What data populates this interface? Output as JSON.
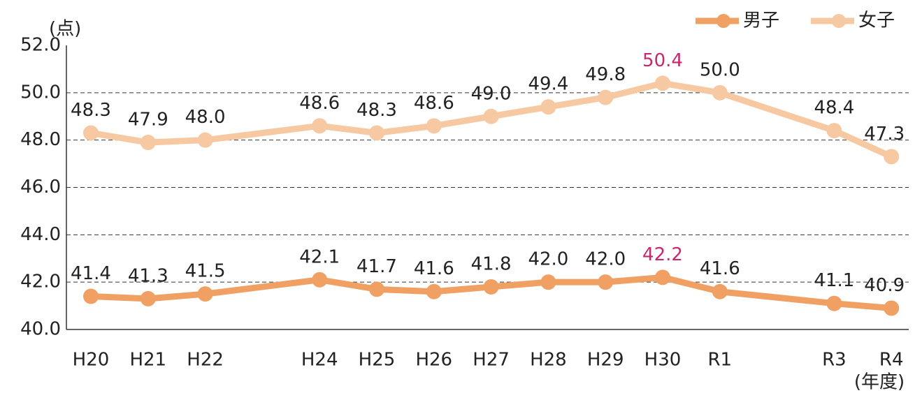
{
  "chart_data": {
    "type": "line",
    "y_label": "(点)",
    "x_label": "(年度)",
    "categories": [
      "H20",
      "H21",
      "H22",
      null,
      "H24",
      "H25",
      "H26",
      "H27",
      "H28",
      "H29",
      "H30",
      "R1",
      null,
      "R3",
      "R4"
    ],
    "series": [
      {
        "name": "男子",
        "color": "#f0a062",
        "values": [
          41.4,
          41.3,
          41.5,
          null,
          42.1,
          41.7,
          41.6,
          41.8,
          42.0,
          42.0,
          42.2,
          41.6,
          null,
          41.1,
          40.9
        ],
        "value_labels": [
          "41.4",
          "41.3",
          "41.5",
          null,
          "42.1",
          "41.7",
          "41.6",
          "41.8",
          "42.0",
          "42.0",
          "42.2",
          "41.6",
          null,
          "41.1",
          "40.9"
        ]
      },
      {
        "name": "女子",
        "color": "#f7c9a2",
        "values": [
          48.3,
          47.9,
          48.0,
          null,
          48.6,
          48.3,
          48.6,
          49.0,
          49.4,
          49.8,
          50.4,
          50.0,
          null,
          48.4,
          47.3
        ],
        "value_labels": [
          "48.3",
          "47.9",
          "48.0",
          null,
          "48.6",
          "48.3",
          "48.6",
          "49.0",
          "49.4",
          "49.8",
          "50.4",
          "50.0",
          null,
          "48.4",
          "47.3"
        ]
      }
    ],
    "ylim": [
      40,
      52
    ],
    "yticks": [
      {
        "value": 40,
        "label": "40.0"
      },
      {
        "value": 42,
        "label": "42.0"
      },
      {
        "value": 44,
        "label": "44.0"
      },
      {
        "value": 46,
        "label": "46.0"
      },
      {
        "value": 48,
        "label": "48.0"
      },
      {
        "value": 50,
        "label": "50.0"
      },
      {
        "value": 52,
        "label": "52.0"
      }
    ],
    "grid": true,
    "span_gaps": true,
    "legend": "top-right",
    "highlight": {
      "category": "H30",
      "color": "#c8286e"
    }
  }
}
